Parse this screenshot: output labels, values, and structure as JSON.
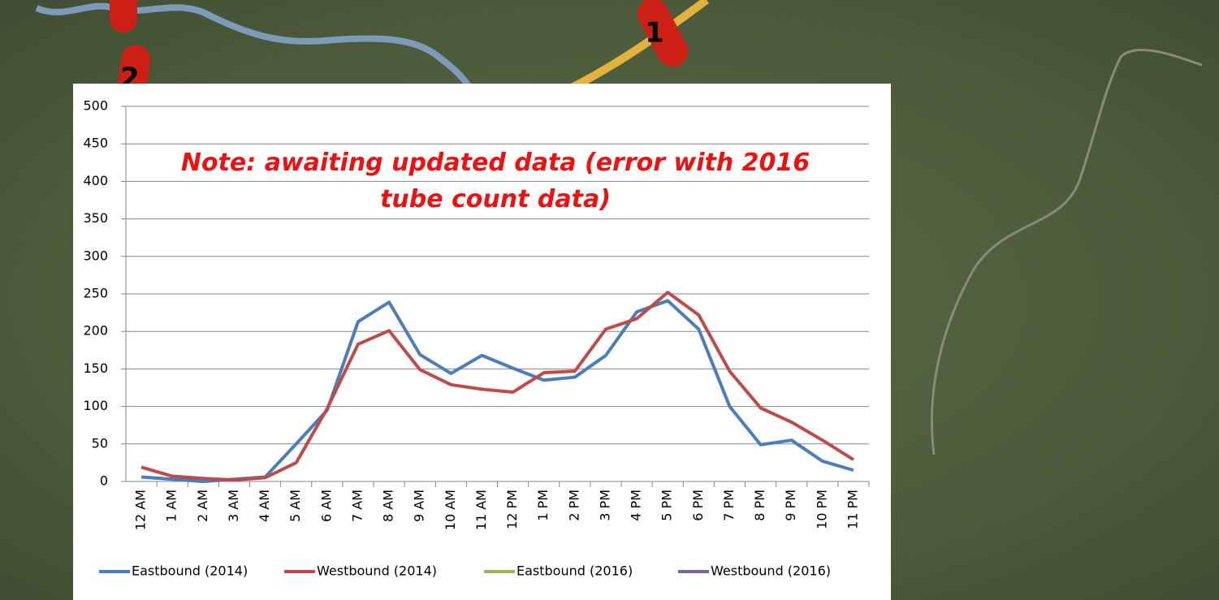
{
  "markers": [
    "1",
    "2"
  ],
  "chart_data": {
    "type": "line",
    "annotation": "Note: awaiting updated data (error with 2016 tube count data)",
    "categories": [
      "12 AM",
      "1 AM",
      "2 AM",
      "3 AM",
      "4 AM",
      "5 AM",
      "6 AM",
      "7 AM",
      "8 AM",
      "9 AM",
      "10 AM",
      "11 AM",
      "12 PM",
      "1 PM",
      "2 PM",
      "3 PM",
      "4 PM",
      "5 PM",
      "6 PM",
      "7 PM",
      "8 PM",
      "9 PM",
      "10 PM",
      "11 PM"
    ],
    "series": [
      {
        "name": "Eastbound (2014)",
        "color": "#4a7ebb",
        "values": [
          6,
          3,
          0,
          3,
          6,
          50,
          95,
          213,
          239,
          169,
          144,
          168,
          151,
          135,
          139,
          168,
          226,
          241,
          203,
          100,
          49,
          55,
          27,
          15
        ]
      },
      {
        "name": "Westbound (2014)",
        "color": "#be4b48",
        "values": [
          19,
          7,
          4,
          2,
          5,
          25,
          97,
          183,
          201,
          149,
          129,
          123,
          119,
          145,
          147,
          203,
          217,
          252,
          222,
          147,
          98,
          79,
          55,
          29
        ]
      },
      {
        "name": "Eastbound (2016)",
        "color": "#98b954",
        "values": [
          null,
          null,
          null,
          null,
          null,
          null,
          null,
          null,
          null,
          null,
          null,
          null,
          null,
          null,
          null,
          null,
          null,
          null,
          null,
          null,
          null,
          null,
          null,
          null
        ]
      },
      {
        "name": "Westbound (2016)",
        "color": "#7d60a0",
        "values": [
          null,
          null,
          null,
          null,
          null,
          null,
          null,
          null,
          null,
          null,
          null,
          null,
          null,
          null,
          null,
          null,
          null,
          null,
          null,
          null,
          null,
          null,
          null,
          null
        ]
      }
    ],
    "ylim": [
      0,
      500
    ],
    "yticks": [
      0,
      50,
      100,
      150,
      200,
      250,
      300,
      350,
      400,
      450,
      500
    ],
    "grid": true,
    "legend": "bottom"
  }
}
